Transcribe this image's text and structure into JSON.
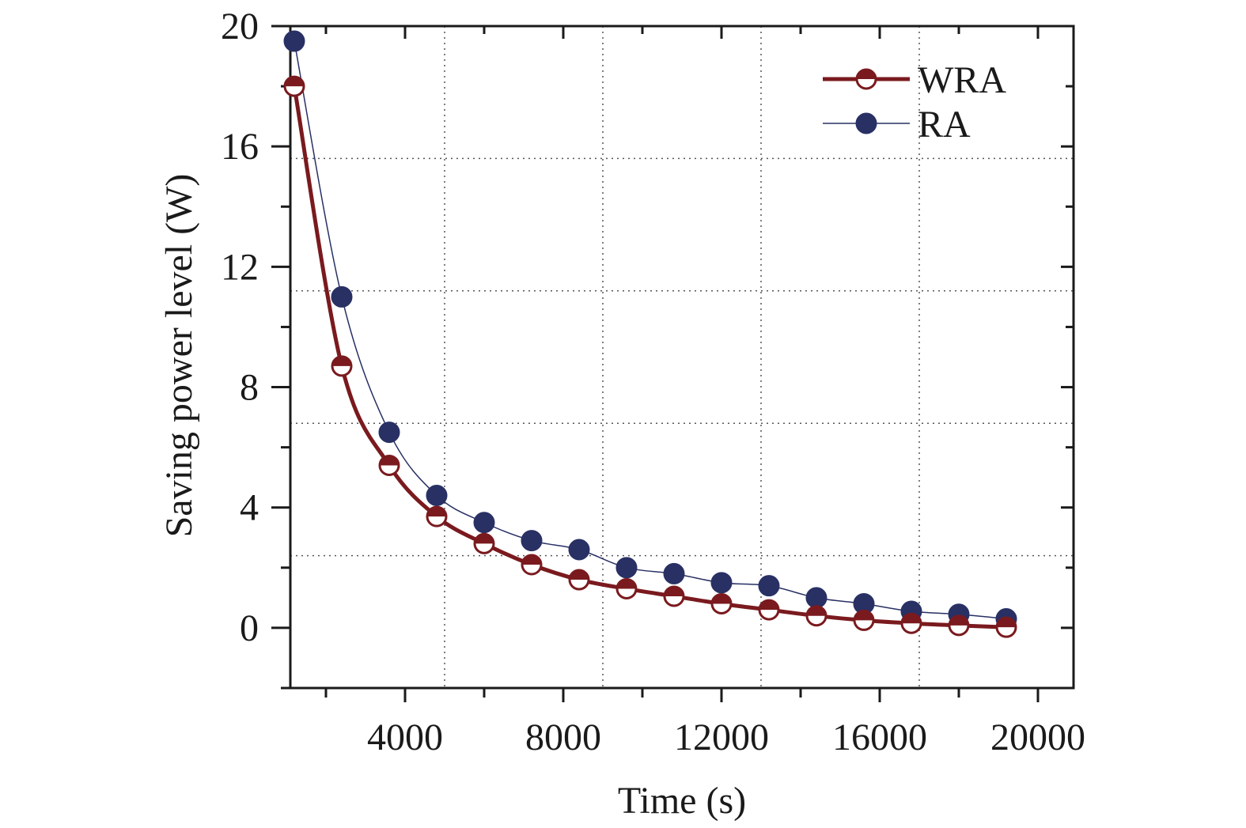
{
  "chart_data": {
    "type": "line",
    "title": "",
    "xlabel": "Time (s)",
    "ylabel": "Saving power level (W)",
    "xlim": [
      1100,
      20900
    ],
    "ylim": [
      -2,
      20
    ],
    "xticks": [
      4000,
      8000,
      12000,
      16000,
      20000
    ],
    "yticks": [
      0,
      4,
      8,
      12,
      16,
      20
    ],
    "grid": "dotted",
    "legend_position": "top-right",
    "series": [
      {
        "name": "WRA",
        "color": "#7a1a1e",
        "marker": "half-filled-circle",
        "x": [
          1200,
          2400,
          3600,
          4800,
          6000,
          7200,
          8400,
          9600,
          10800,
          12000,
          13200,
          14400,
          15600,
          16800,
          18000,
          19200
        ],
        "values": [
          18.0,
          8.7,
          5.4,
          3.7,
          2.8,
          2.1,
          1.6,
          1.3,
          1.05,
          0.8,
          0.6,
          0.4,
          0.25,
          0.15,
          0.08,
          0.02
        ]
      },
      {
        "name": "RA",
        "color": "#283064",
        "marker": "filled-circle",
        "x": [
          1200,
          2400,
          3600,
          4800,
          6000,
          7200,
          8400,
          9600,
          10800,
          12000,
          13200,
          14400,
          15600,
          16800,
          18000,
          19200
        ],
        "values": [
          19.5,
          11.0,
          6.5,
          4.4,
          3.5,
          2.9,
          2.6,
          2.0,
          1.8,
          1.5,
          1.4,
          1.0,
          0.8,
          0.55,
          0.45,
          0.3
        ]
      }
    ]
  }
}
